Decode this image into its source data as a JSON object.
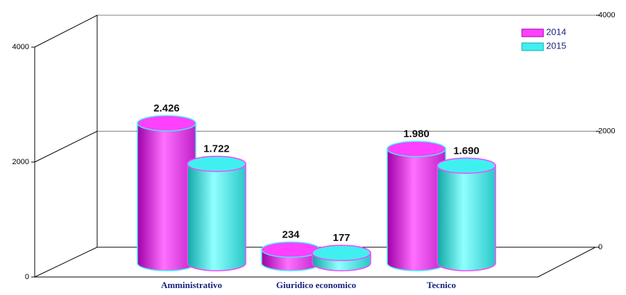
{
  "chart_data": {
    "type": "bar3d",
    "categories": [
      "Amministrativo",
      "Giuridico economico",
      "Tecnico"
    ],
    "series": [
      {
        "name": "2014",
        "color": "#ff40ff",
        "values": [
          2426,
          234,
          1980
        ],
        "value_labels": [
          "2.426",
          "234",
          "1.980"
        ]
      },
      {
        "name": "2015",
        "color": "#40f0f0",
        "values": [
          1722,
          177,
          1690
        ],
        "value_labels": [
          "1.722",
          "177",
          "1.690"
        ]
      }
    ],
    "ylim": [
      0,
      4000
    ],
    "yticks": [
      0,
      2000,
      4000
    ],
    "grid": true,
    "legend": "upper right"
  }
}
